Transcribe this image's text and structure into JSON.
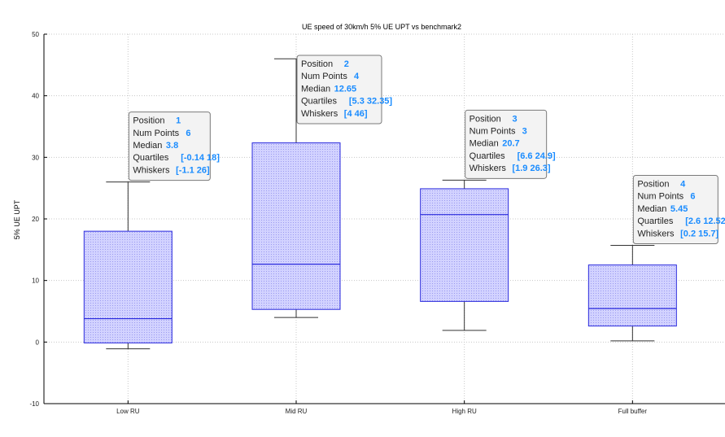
{
  "chart_data": {
    "type": "box",
    "title": "UE speed of 30km/h 5% UE UPT vs benchmark2",
    "ylabel": "5% UE UPT",
    "xlabel": "",
    "ylim": [
      -10,
      50
    ],
    "yticks": [
      -10,
      0,
      10,
      20,
      30,
      40,
      50
    ],
    "grid": true,
    "categories": [
      "Low RU",
      "Mid RU",
      "High RU",
      "Full buffer"
    ],
    "boxes": [
      {
        "position": 1,
        "num_points": 6,
        "median": 3.8,
        "quartiles": [
          -0.14,
          18
        ],
        "whiskers": [
          -1.1,
          26
        ]
      },
      {
        "position": 2,
        "num_points": 4,
        "median": 12.65,
        "quartiles": [
          5.3,
          32.35
        ],
        "whiskers": [
          4,
          46
        ]
      },
      {
        "position": 3,
        "num_points": 3,
        "median": 20.7,
        "quartiles": [
          6.6,
          24.9
        ],
        "whiskers": [
          1.9,
          26.3
        ]
      },
      {
        "position": 4,
        "num_points": 6,
        "median": 5.45,
        "quartiles": [
          2.6,
          12.52
        ],
        "whiskers": [
          0.2,
          15.7
        ]
      }
    ],
    "datatips": [
      {
        "labels": [
          "Position",
          "Num Points",
          "Median",
          "Quartiles",
          "Whiskers"
        ],
        "values": [
          "1",
          "6",
          "3.8",
          "[-0.14 18]",
          "[-1.1 26]"
        ]
      },
      {
        "labels": [
          "Position",
          "Num Points",
          "Median",
          "Quartiles",
          "Whiskers"
        ],
        "values": [
          "2",
          "4",
          "12.65",
          "[5.3 32.35]",
          "[4 46]"
        ]
      },
      {
        "labels": [
          "Position",
          "Num Points",
          "Median",
          "Quartiles",
          "Whiskers"
        ],
        "values": [
          "3",
          "3",
          "20.7",
          "[6.6 24.9]",
          "[1.9 26.3]"
        ]
      },
      {
        "labels": [
          "Position",
          "Num Points",
          "Median",
          "Quartiles",
          "Whiskers"
        ],
        "values": [
          "4",
          "6",
          "5.45",
          "[2.6 12.52]",
          "[0.2 15.7]"
        ]
      }
    ],
    "colors": {
      "box_fill": "#c8c8ff",
      "box_edge": "#2b2bdd",
      "whisker": "#333333",
      "grid": "#c8c8c8",
      "tip_value": "#1a8cff"
    }
  }
}
